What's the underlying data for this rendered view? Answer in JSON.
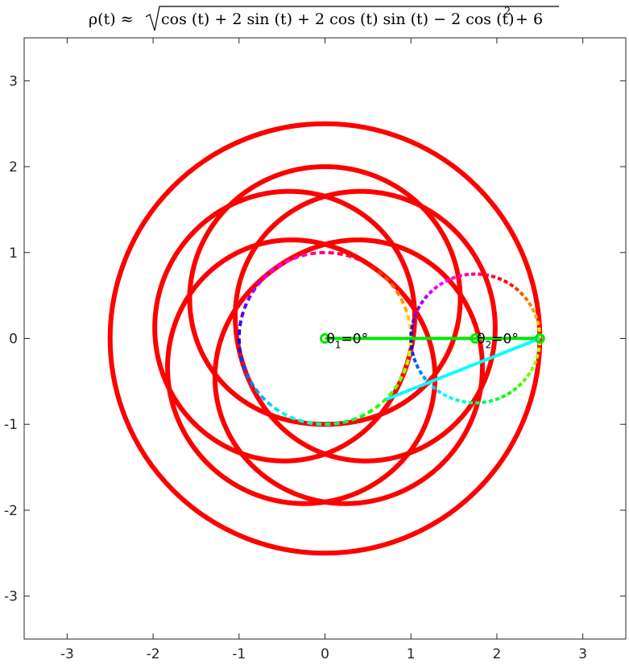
{
  "chart_data": {
    "type": "line",
    "title_parts": {
      "lhs": "ρ(t) ≈",
      "radicand_a": "cos (t) + 2  sin (t) + 2  cos (t)  sin (t) − 2 cos (t)",
      "exponent": "2",
      "radicand_b": " + 6"
    },
    "xlim": [
      -3.5,
      3.5
    ],
    "ylim": [
      -3.5,
      3.5
    ],
    "xticks": [
      -3,
      -2,
      -1,
      0,
      1,
      2,
      3
    ],
    "yticks": [
      -3,
      -2,
      -1,
      0,
      1,
      2,
      3
    ],
    "xtick_labels": [
      "-3",
      "-2",
      "-1",
      "0",
      "1",
      "2",
      "3"
    ],
    "ytick_labels": [
      "-3",
      "-2",
      "-1",
      "0",
      "1",
      "2",
      "3"
    ],
    "grid": false,
    "curve": {
      "color": "#ff0000",
      "outer_circle_radius": 2.5,
      "inner_curve_radius_range": [
        1.0,
        2.0
      ],
      "rotated_curve_offsets_deg": [
        0,
        72,
        144,
        216,
        288
      ]
    },
    "circles": [
      {
        "center": [
          0,
          0
        ],
        "radius": 1.0,
        "style": "dotted-rainbow"
      },
      {
        "center": [
          1.75,
          0
        ],
        "radius": 0.75,
        "style": "dotted-rainbow"
      }
    ],
    "segments": [
      {
        "from": [
          0,
          0
        ],
        "to": [
          2.5,
          0
        ],
        "color": "#00e600"
      },
      {
        "from": [
          0.71,
          -0.71
        ],
        "to": [
          2.5,
          0
        ],
        "color": "#00ffff"
      }
    ],
    "points": [
      {
        "at": [
          0,
          0
        ],
        "color": "#00e600"
      },
      {
        "at": [
          1.75,
          0
        ],
        "color": "#00e600"
      },
      {
        "at": [
          2.5,
          0
        ],
        "color": "#00e600"
      }
    ],
    "annotations": [
      {
        "theta": "θ",
        "sub": "1",
        "value": "=0°",
        "at": [
          0,
          0
        ]
      },
      {
        "theta": "θ",
        "sub": "2",
        "value": "=0°",
        "at": [
          1.75,
          0
        ]
      }
    ]
  }
}
